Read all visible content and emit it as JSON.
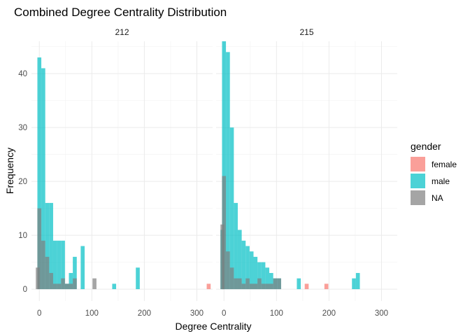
{
  "chart_data": {
    "type": "bar",
    "title": "Combined Degree Centrality Distribution",
    "xlabel": "Degree Centrality",
    "ylabel": "Frequency",
    "xlim": [
      -15,
      330
    ],
    "ylim": [
      -2.2,
      46
    ],
    "x_ticks": [
      0,
      100,
      200,
      300
    ],
    "y_ticks": [
      0,
      10,
      20,
      30,
      40
    ],
    "bin_width": 7.5,
    "grid": true,
    "legend": {
      "title": "gender",
      "position": "right",
      "entries": [
        {
          "label": "female",
          "color": "#F8766D"
        },
        {
          "label": "male",
          "color": "#00BFC4"
        },
        {
          "label": "NA",
          "color": "#7F7F7F"
        }
      ]
    },
    "panels": [
      {
        "strip": "212",
        "series": [
          {
            "name": "male",
            "color": "#00BFC4",
            "x": [
              0,
              7.5,
              15,
              22.5,
              30,
              37.5,
              45,
              52.5,
              60,
              67.5,
              82.5,
              142.5,
              187.5
            ],
            "values": [
              43,
              41,
              16,
              16,
              9,
              9,
              9,
              1,
              3,
              6,
              8,
              1,
              4
            ]
          },
          {
            "name": "NA",
            "color": "#7F7F7F",
            "x": [
              -3,
              0,
              7.5,
              15,
              22.5,
              30,
              37.5,
              45,
              52.5,
              60,
              67.5,
              105
            ],
            "values": [
              4,
              15,
              9,
              6,
              3,
              1,
              1,
              2,
              1,
              1,
              2,
              2
            ]
          },
          {
            "name": "female",
            "color": "#F8766D",
            "x": [
              322.5
            ],
            "values": [
              1
            ]
          }
        ]
      },
      {
        "strip": "215",
        "series": [
          {
            "name": "male",
            "color": "#00BFC4",
            "x": [
              -3,
              0,
              7.5,
              15,
              22.5,
              30,
              37.5,
              45,
              52.5,
              60,
              67.5,
              75,
              82.5,
              90,
              97.5,
              105,
              142.5,
              247.5,
              255
            ],
            "values": [
              11,
              46,
              44,
              30,
              16,
              11,
              9,
              8,
              7,
              6,
              5,
              5,
              4,
              3,
              2,
              2,
              2,
              2,
              3
            ]
          },
          {
            "name": "NA",
            "color": "#7F7F7F",
            "x": [
              -3,
              0,
              7.5,
              15,
              22.5,
              30,
              37.5,
              45,
              52.5,
              60,
              67.5,
              75,
              82.5,
              90,
              97.5,
              105
            ],
            "values": [
              12,
              21,
              7,
              4,
              2,
              2,
              1,
              2,
              1,
              1,
              2,
              1,
              1,
              1,
              2,
              2
            ]
          },
          {
            "name": "female",
            "color": "#F8766D",
            "x": [
              157.5,
              195
            ],
            "values": [
              1,
              1
            ]
          }
        ]
      }
    ]
  }
}
